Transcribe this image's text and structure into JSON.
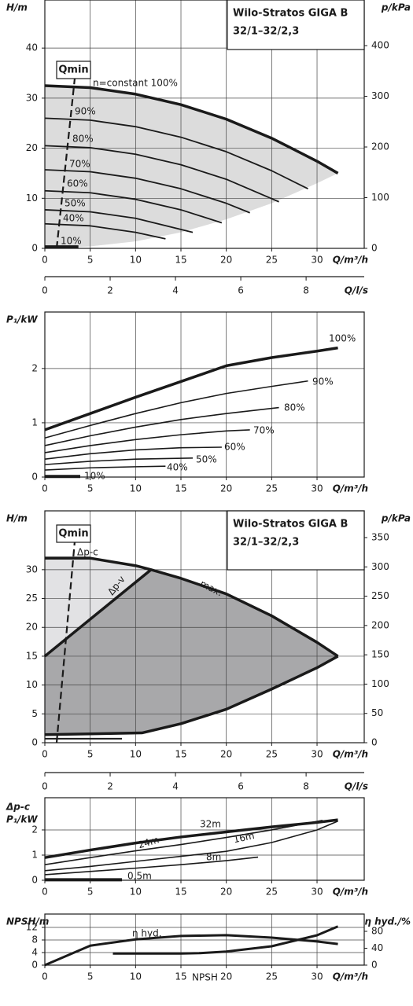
{
  "chart_data": [
    {
      "type": "line",
      "title": "Wilo-Stratos GIGA B",
      "subtitle": "32/1–32/2,3",
      "ylabel": "H/m",
      "y2label": "p/kPa",
      "xlabel": "Q/m³/h",
      "x2label": "Q/l/s",
      "xlim": [
        0,
        35.2
      ],
      "xticks": [
        0,
        5,
        10,
        15,
        20,
        25,
        30
      ],
      "x2lim": [
        0,
        9.78
      ],
      "x2ticks": [
        0,
        2,
        4,
        6,
        8
      ],
      "ylim": [
        0,
        49.6
      ],
      "yticks": [
        0,
        10,
        20,
        30,
        40
      ],
      "y2lim": [
        0,
        490
      ],
      "y2ticks": [
        0,
        100,
        200,
        300,
        400
      ],
      "grid": true,
      "areas": [
        {
          "color": "#dcdcdc",
          "x": [
            0,
            5,
            10,
            15,
            20,
            25,
            30,
            32.3,
            30,
            25,
            20,
            15,
            10,
            5,
            0
          ],
          "values": [
            32.5,
            32.1,
            30.8,
            28.7,
            25.8,
            22,
            17.4,
            15,
            13,
            9,
            5.8,
            3.2,
            1.4,
            0.4,
            0
          ]
        }
      ],
      "series": [
        {
          "name": "n=constant 100%",
          "color": "#1a1a1a",
          "width": 3.5,
          "x": [
            0,
            5,
            10,
            15,
            20,
            25,
            30,
            32.3
          ],
          "values": [
            32.5,
            32.1,
            30.8,
            28.7,
            25.8,
            22,
            17.4,
            15
          ]
        },
        {
          "name": "90%",
          "color": "#1a1a1a",
          "width": 1.8,
          "x": [
            0,
            5,
            10,
            15,
            20,
            25,
            29
          ],
          "values": [
            26,
            25.6,
            24.3,
            22.2,
            19.3,
            15.5,
            11.9
          ]
        },
        {
          "name": "80%",
          "color": "#1a1a1a",
          "width": 1.8,
          "x": [
            0,
            5,
            10,
            15,
            20,
            25.8
          ],
          "values": [
            20.5,
            20.1,
            18.8,
            16.7,
            13.8,
            9.3
          ]
        },
        {
          "name": "70%",
          "color": "#1a1a1a",
          "width": 1.8,
          "x": [
            0,
            5,
            10,
            15,
            20,
            22.6
          ],
          "values": [
            15.7,
            15.3,
            14,
            11.9,
            9,
            7.1
          ]
        },
        {
          "name": "60%",
          "color": "#1a1a1a",
          "width": 1.8,
          "x": [
            0,
            5,
            10,
            15,
            19.5
          ],
          "values": [
            11.5,
            11.1,
            9.8,
            7.7,
            5.1
          ]
        },
        {
          "name": "50%",
          "color": "#1a1a1a",
          "width": 1.8,
          "x": [
            0,
            5,
            10,
            16.3
          ],
          "values": [
            7.7,
            7.3,
            6,
            3.2
          ]
        },
        {
          "name": "40%",
          "color": "#1a1a1a",
          "width": 1.8,
          "x": [
            0,
            5,
            10,
            13.3
          ],
          "values": [
            4.9,
            4.5,
            3.2,
            1.9
          ]
        },
        {
          "name": "10%",
          "color": "#1a1a1a",
          "width": 4,
          "x": [
            0,
            3.7
          ],
          "values": [
            0.3,
            0.3
          ]
        },
        {
          "name": "Qmin",
          "color": "#1a1a1a",
          "width": 2.2,
          "dash": true,
          "x": [
            1.3,
            3.3
          ],
          "values": [
            0,
            34
          ]
        }
      ]
    },
    {
      "type": "line",
      "ylabel": "P₁/kW",
      "xlabel": "Q/m³/h",
      "xlim": [
        0,
        35.2
      ],
      "xticks": [
        0,
        5,
        10,
        15,
        20,
        25,
        30
      ],
      "ylim": [
        0,
        3.04
      ],
      "yticks": [
        0,
        1,
        2
      ],
      "grid": true,
      "series": [
        {
          "name": "100%",
          "color": "#1a1a1a",
          "width": 3.5,
          "x": [
            0,
            5,
            10,
            15,
            20,
            25,
            30,
            32.3
          ],
          "values": [
            0.87,
            1.17,
            1.47,
            1.76,
            2.05,
            2.2,
            2.32,
            2.38
          ]
        },
        {
          "name": "90%",
          "color": "#1a1a1a",
          "width": 1.6,
          "x": [
            0,
            5,
            10,
            15,
            20,
            25,
            29
          ],
          "values": [
            0.72,
            0.95,
            1.17,
            1.37,
            1.54,
            1.67,
            1.77
          ]
        },
        {
          "name": "80%",
          "color": "#1a1a1a",
          "width": 1.6,
          "x": [
            0,
            5,
            10,
            15,
            20,
            25.8
          ],
          "values": [
            0.58,
            0.76,
            0.92,
            1.06,
            1.17,
            1.28
          ]
        },
        {
          "name": "70%",
          "color": "#1a1a1a",
          "width": 1.6,
          "x": [
            0,
            5,
            10,
            15,
            20,
            22.6
          ],
          "values": [
            0.45,
            0.58,
            0.69,
            0.78,
            0.85,
            0.87
          ]
        },
        {
          "name": "60%",
          "color": "#1a1a1a",
          "width": 1.6,
          "x": [
            0,
            5,
            10,
            15,
            19.5
          ],
          "values": [
            0.33,
            0.43,
            0.5,
            0.54,
            0.55
          ]
        },
        {
          "name": "50%",
          "color": "#1a1a1a",
          "width": 1.6,
          "x": [
            0,
            5,
            10,
            16.3
          ],
          "values": [
            0.23,
            0.29,
            0.33,
            0.35
          ]
        },
        {
          "name": "40%",
          "color": "#1a1a1a",
          "width": 1.6,
          "x": [
            0,
            5,
            10,
            13.3
          ],
          "values": [
            0.13,
            0.17,
            0.19,
            0.2
          ]
        },
        {
          "name": "10%",
          "color": "#1a1a1a",
          "width": 4,
          "x": [
            0,
            3.9
          ],
          "values": [
            0.01,
            0.01
          ]
        }
      ]
    },
    {
      "type": "line",
      "title": "Wilo-Stratos GIGA B",
      "subtitle": "32/1–32/2,3",
      "ylabel": "H/m",
      "y2label": "p/kPa",
      "xlabel": "Q/m³/h",
      "x2label": "Q/l/s",
      "xlim": [
        0,
        35.2
      ],
      "xticks": [
        0,
        5,
        10,
        15,
        20,
        25,
        30
      ],
      "x2lim": [
        0,
        9.78
      ],
      "x2ticks": [
        0,
        2,
        4,
        6,
        8
      ],
      "ylim": [
        0,
        40.2
      ],
      "yticks": [
        0,
        5,
        10,
        15,
        20,
        25,
        30
      ],
      "y2lim": [
        0,
        395.6
      ],
      "y2ticks": [
        0,
        50,
        100,
        150,
        200,
        250,
        300,
        350
      ],
      "grid": true,
      "areas": [
        {
          "color": "#e2e2e4",
          "x": [
            0,
            5,
            10,
            11.7,
            0
          ],
          "values": [
            32,
            32,
            30.7,
            30,
            15
          ]
        },
        {
          "color": "#a8a8aa",
          "x": [
            0,
            11.7,
            15,
            20,
            25,
            30,
            32.3,
            30,
            25,
            20,
            15,
            10.7,
            0
          ],
          "values": [
            15,
            30,
            28.5,
            25.8,
            22,
            17.4,
            15,
            13,
            9.3,
            5.8,
            3.3,
            1.7,
            1.4
          ]
        }
      ],
      "series": [
        {
          "name": "max.",
          "color": "#1a1a1a",
          "width": 3.5,
          "x": [
            0,
            5,
            10,
            11.7,
            15,
            20,
            25,
            30,
            32.3
          ],
          "values": [
            32,
            32,
            30.7,
            30,
            28.5,
            25.8,
            22,
            17.4,
            15
          ]
        },
        {
          "name": "Δp-c",
          "color": "#1a1a1a",
          "width": 3.5,
          "x": [
            0,
            5
          ],
          "values": [
            32,
            32
          ]
        },
        {
          "name": "Δp-v",
          "color": "#1a1a1a",
          "width": 3.5,
          "x": [
            0,
            11.7
          ],
          "values": [
            15,
            30
          ]
        },
        {
          "color": "#1a1a1a",
          "width": 3.5,
          "x": [
            32.3,
            30,
            25,
            20,
            15,
            10.7,
            0
          ],
          "values": [
            15,
            13,
            9.3,
            5.8,
            3.3,
            1.7,
            1.4
          ]
        },
        {
          "color": "#1a1a1a",
          "width": 2,
          "x": [
            0,
            8.5
          ],
          "values": [
            0.7,
            0.7
          ]
        },
        {
          "name": "Qmin",
          "color": "#1a1a1a",
          "width": 2.2,
          "dash": true,
          "x": [
            1.3,
            3.3
          ],
          "values": [
            0,
            35
          ]
        }
      ]
    },
    {
      "type": "line",
      "title": "Δp-c",
      "ylabel": "P₁/kW",
      "xlabel": "Q/m³/h",
      "xlim": [
        0,
        35.2
      ],
      "xticks": [
        0,
        5,
        10,
        15,
        20,
        25,
        30
      ],
      "ylim": [
        0,
        3.28
      ],
      "yticks": [
        0,
        1,
        2
      ],
      "grid": true,
      "series": [
        {
          "name": "32m",
          "color": "#1a1a1a",
          "width": 3.5,
          "x": [
            0,
            5,
            10,
            15,
            20,
            25,
            30,
            32.3
          ],
          "values": [
            0.9,
            1.2,
            1.48,
            1.72,
            1.92,
            2.12,
            2.3,
            2.4
          ]
        },
        {
          "name": "24m",
          "color": "#1a1a1a",
          "width": 1.6,
          "x": [
            0,
            5,
            10,
            15,
            20,
            25,
            30.6
          ],
          "values": [
            0.62,
            0.9,
            1.17,
            1.42,
            1.7,
            2,
            2.38
          ]
        },
        {
          "name": "16m",
          "color": "#1a1a1a",
          "width": 1.6,
          "x": [
            0,
            5,
            10,
            15,
            20,
            25,
            30,
            32.3
          ],
          "values": [
            0.38,
            0.55,
            0.75,
            0.95,
            1.15,
            1.5,
            2,
            2.35
          ]
        },
        {
          "name": "8m",
          "color": "#1a1a1a",
          "width": 1.6,
          "x": [
            0,
            5,
            10,
            15,
            20,
            23.5
          ],
          "values": [
            0.22,
            0.35,
            0.48,
            0.62,
            0.78,
            0.92
          ]
        },
        {
          "name": "0,5m",
          "color": "#1a1a1a",
          "width": 4,
          "x": [
            0,
            8.5
          ],
          "values": [
            0.02,
            0.02
          ]
        }
      ]
    },
    {
      "type": "line",
      "ylabel": "NPSH/m",
      "y2label": "η hyd./%",
      "xlabel": "Q/m³/h",
      "xlim": [
        0,
        35.2
      ],
      "xticks": [
        0,
        5,
        10,
        15,
        20,
        25,
        30
      ],
      "ylim": [
        0,
        16.25
      ],
      "yticks": [
        0,
        4,
        8,
        12
      ],
      "y2lim": [
        0,
        120.9
      ],
      "y2ticks": [
        0,
        40,
        80
      ],
      "grid": true,
      "series": [
        {
          "name": "η hyd.",
          "color": "#1a1a1a",
          "width": 3,
          "axis": "y2",
          "x": [
            0,
            5,
            10,
            15,
            20,
            25,
            30,
            32.3
          ],
          "values": [
            0,
            46,
            61,
            69,
            71,
            65,
            56,
            50
          ]
        },
        {
          "name": "NPSH",
          "color": "#1a1a1a",
          "width": 3,
          "x": [
            7.5,
            10,
            15,
            17,
            20,
            25,
            30,
            32.3
          ],
          "values": [
            3.7,
            3.7,
            3.7,
            3.8,
            4.3,
            6,
            9.5,
            12.3
          ]
        }
      ]
    }
  ]
}
